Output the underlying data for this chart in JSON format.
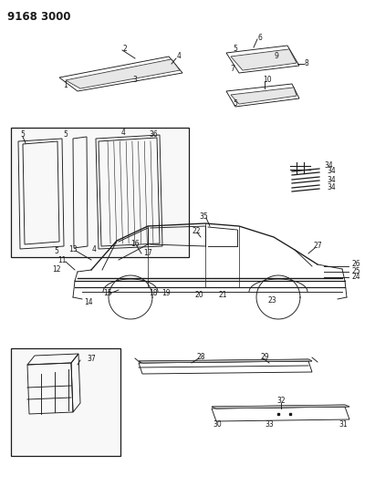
{
  "title": "9168 3000",
  "bg_color": "#ffffff",
  "lc": "#1a1a1a",
  "fig_width": 4.11,
  "fig_height": 5.33,
  "dpi": 100,
  "fs": 5.5,
  "fs_title": 8.5,
  "lw": 0.65
}
